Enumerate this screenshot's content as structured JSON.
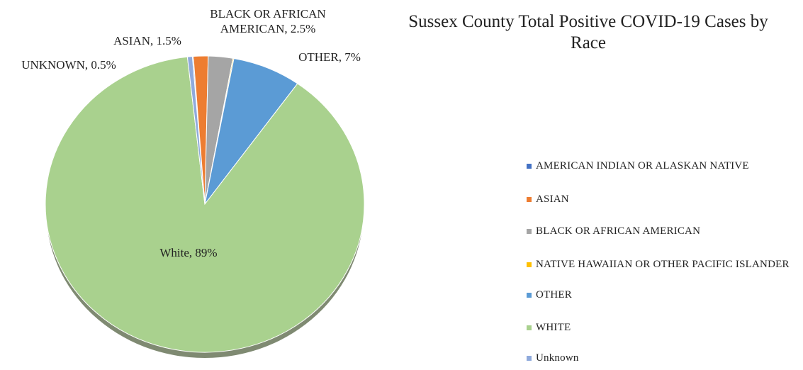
{
  "chart_data": {
    "type": "pie",
    "title": "Sussex County Total Positive COVID-19 Cases by Race",
    "slices": [
      {
        "label": "AMERICAN INDIAN OR ALASKAN NATIVE",
        "value": 0.1,
        "color": "#4472c4",
        "data_label": ""
      },
      {
        "label": "ASIAN",
        "value": 1.5,
        "color": "#ed7d31",
        "data_label": "ASIAN, 1.5%"
      },
      {
        "label": "BLACK OR AFRICAN AMERICAN",
        "value": 2.5,
        "color": "#a5a5a5",
        "data_label": "BLACK OR AFRICAN AMERICAN, 2.5%"
      },
      {
        "label": "NATIVE HAWAIIAN OR OTHER PACIFIC ISLANDER",
        "value": 0.1,
        "color": "#ffc000",
        "data_label": ""
      },
      {
        "label": "OTHER",
        "value": 7,
        "color": "#5b9bd5",
        "data_label": "OTHER, 7%"
      },
      {
        "label": "WHITE",
        "value": 89,
        "color": "#a9d18e",
        "data_label": "White, 89%"
      },
      {
        "label": "Unknown",
        "value": 0.5,
        "color": "#8faadc",
        "data_label": "UNKNOWN, 0.5%"
      }
    ],
    "legend": {
      "position": "right",
      "entries": [
        "AMERICAN INDIAN OR ALASKAN NATIVE",
        "ASIAN",
        "BLACK OR AFRICAN AMERICAN",
        "NATIVE HAWAIIAN OR OTHER PACIFIC ISLANDER",
        "OTHER",
        "WHITE",
        "Unknown"
      ]
    }
  }
}
